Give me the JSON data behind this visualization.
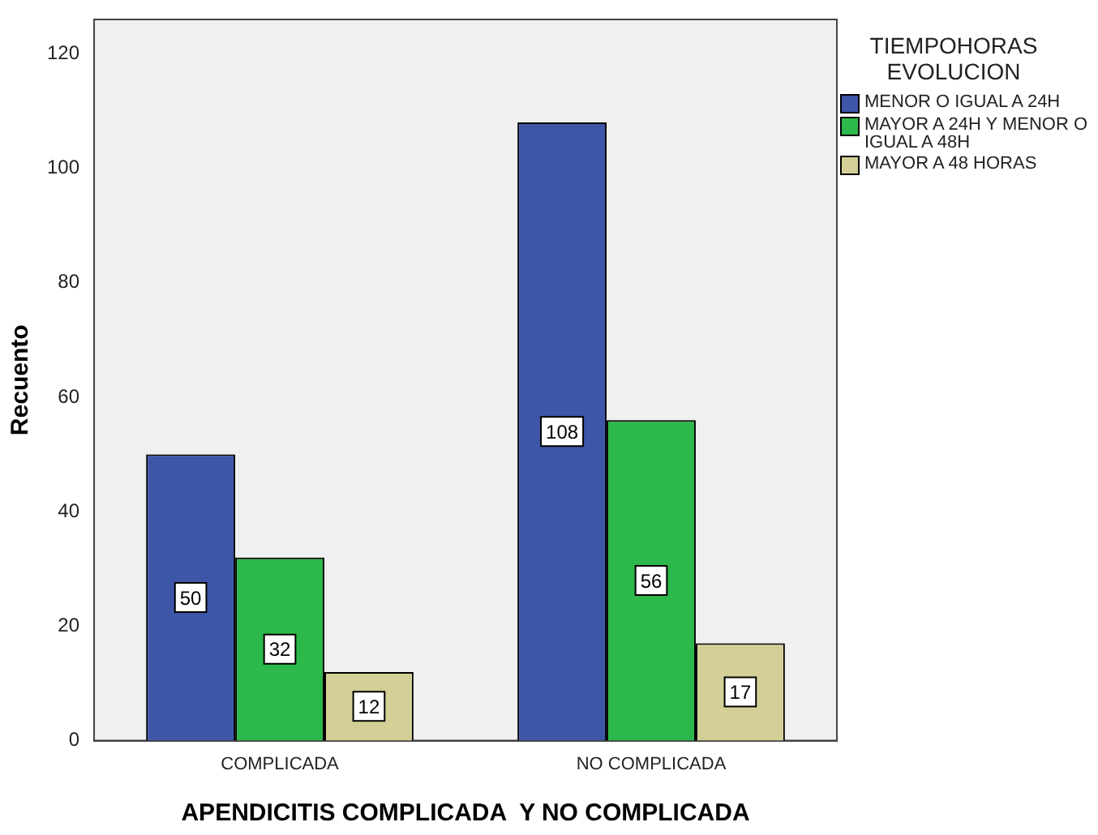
{
  "chart_data": {
    "type": "bar",
    "xlabel": "APENDICITIS COMPLICADA  Y NO COMPLICADA",
    "ylabel": "Recuento",
    "legend_title": "TIEMPOHORAS EVOLUCION",
    "categories": [
      "COMPLICADA",
      "NO COMPLICADA"
    ],
    "series": [
      {
        "name": "MENOR O IGUAL A 24H",
        "color": "#3d56a8",
        "values": [
          50,
          108
        ]
      },
      {
        "name": "MAYOR A 24H Y MENOR O IGUAL A 48H",
        "color": "#2db84b",
        "values": [
          32,
          56
        ]
      },
      {
        "name": "MAYOR A 48 HORAS",
        "color": "#d4cf96",
        "values": [
          12,
          17
        ]
      }
    ],
    "ylim": [
      0,
      126
    ],
    "yticks": [
      0,
      20,
      40,
      60,
      80,
      100,
      120
    ],
    "grid": false,
    "legend": "right",
    "data_labels": true
  }
}
